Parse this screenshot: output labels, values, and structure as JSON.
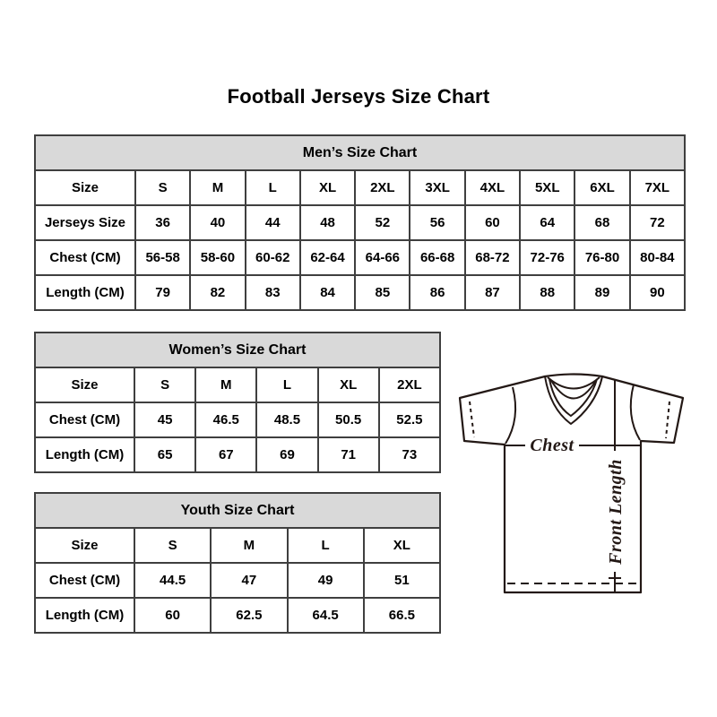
{
  "page": {
    "title": "Football Jerseys Size Chart"
  },
  "chart_data": [
    {
      "type": "table",
      "title": "Men’s Size Chart",
      "rows": [
        [
          "Size",
          "S",
          "M",
          "L",
          "XL",
          "2XL",
          "3XL",
          "4XL",
          "5XL",
          "6XL",
          "7XL"
        ],
        [
          "Jerseys Size",
          "36",
          "40",
          "44",
          "48",
          "52",
          "56",
          "60",
          "64",
          "68",
          "72"
        ],
        [
          "Chest (CM)",
          "56-58",
          "58-60",
          "60-62",
          "62-64",
          "64-66",
          "66-68",
          "68-72",
          "72-76",
          "76-80",
          "80-84"
        ],
        [
          "Length (CM)",
          "79",
          "82",
          "83",
          "84",
          "85",
          "86",
          "87",
          "88",
          "89",
          "90"
        ]
      ]
    },
    {
      "type": "table",
      "title": "Women’s Size Chart",
      "rows": [
        [
          "Size",
          "S",
          "M",
          "L",
          "XL",
          "2XL"
        ],
        [
          "Chest (CM)",
          "45",
          "46.5",
          "48.5",
          "50.5",
          "52.5"
        ],
        [
          "Length (CM)",
          "65",
          "67",
          "69",
          "71",
          "73"
        ]
      ]
    },
    {
      "type": "table",
      "title": "Youth Size Chart",
      "rows": [
        [
          "Size",
          "S",
          "M",
          "L",
          "XL"
        ],
        [
          "Chest (CM)",
          "44.5",
          "47",
          "49",
          "51"
        ],
        [
          "Length (CM)",
          "60",
          "62.5",
          "64.5",
          "66.5"
        ]
      ]
    }
  ],
  "diagram": {
    "chest_label": "Chest",
    "front_length_label": "Front Length"
  },
  "colors": {
    "header_fill": "#d9d9d9",
    "table_border": "#3f3f3f",
    "text": "#000000",
    "diagram_ink": "#231815",
    "background": "#ffffff"
  }
}
